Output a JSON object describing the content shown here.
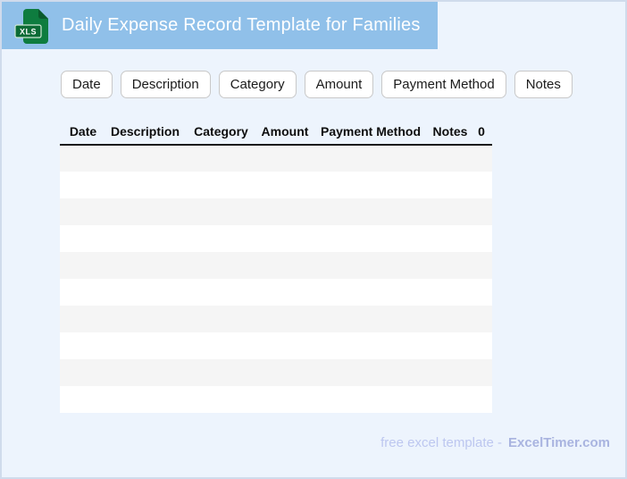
{
  "banner": {
    "title": "Daily Expense Record Template for Families",
    "icon_label": "XLS"
  },
  "chips": {
    "items": [
      "Date",
      "Description",
      "Category",
      "Amount",
      "Payment Method",
      "Notes"
    ]
  },
  "table": {
    "columns": [
      "Date",
      "Description",
      "Category",
      "Amount",
      "Payment Method",
      "Notes",
      "0"
    ],
    "rows": [
      [
        "",
        "",
        "",
        "",
        "",
        "",
        ""
      ],
      [
        "",
        "",
        "",
        "",
        "",
        "",
        ""
      ],
      [
        "",
        "",
        "",
        "",
        "",
        "",
        ""
      ],
      [
        "",
        "",
        "",
        "",
        "",
        "",
        ""
      ],
      [
        "",
        "",
        "",
        "",
        "",
        "",
        ""
      ],
      [
        "",
        "",
        "",
        "",
        "",
        "",
        ""
      ],
      [
        "",
        "",
        "",
        "",
        "",
        "",
        ""
      ],
      [
        "",
        "",
        "",
        "",
        "",
        "",
        ""
      ],
      [
        "",
        "",
        "",
        "",
        "",
        "",
        ""
      ],
      [
        "",
        "",
        "",
        "",
        "",
        "",
        ""
      ]
    ]
  },
  "footer": {
    "prefix": "free excel template -",
    "brand": "ExcelTimer.com"
  },
  "colors": {
    "banner_blue": "#90c0e9",
    "page_background": "#edf4fd",
    "row_stripe": "#f5f5f5",
    "icon_green": "#0e7c3f",
    "icon_band_green": "#0c6b35",
    "footer_text": "#bdc7f0",
    "footer_brand": "#a9b4e0"
  }
}
